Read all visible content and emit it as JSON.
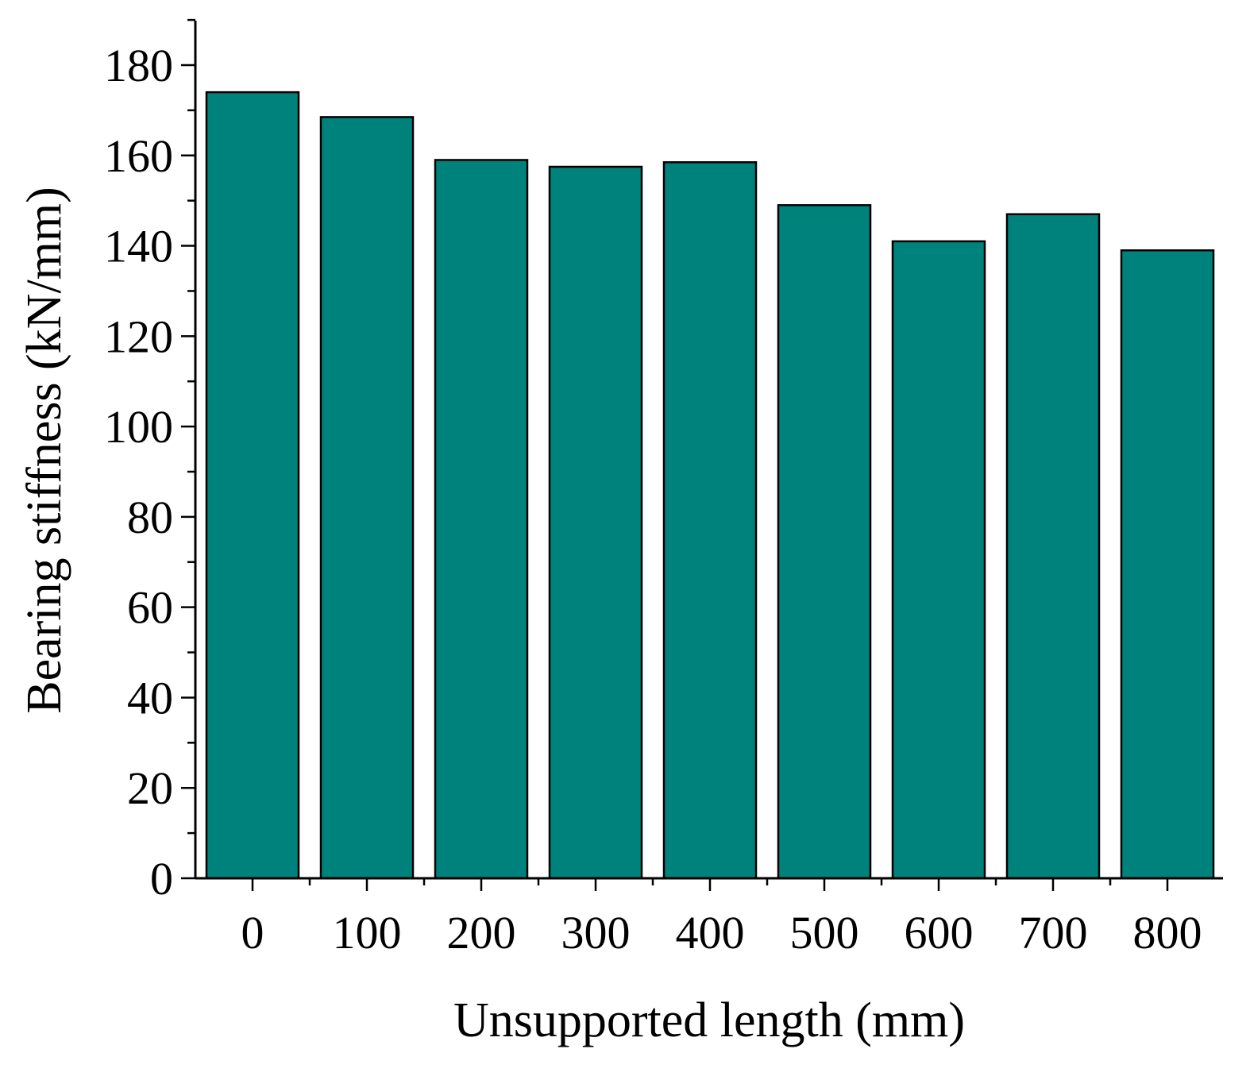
{
  "chart_data": {
    "type": "bar",
    "xlabel": "Unsupported length (mm)",
    "ylabel": "Bearing stiffness (kN/mm)",
    "categories": [
      "0",
      "100",
      "200",
      "300",
      "400",
      "500",
      "600",
      "700",
      "800"
    ],
    "values": [
      174,
      168.5,
      159,
      157.5,
      158.5,
      149,
      141,
      147,
      139
    ],
    "ylim": [
      0,
      190
    ],
    "yticks": [
      0,
      20,
      40,
      60,
      80,
      100,
      120,
      140,
      160,
      180
    ],
    "grid": false,
    "legend": "none",
    "colors": {
      "bar_fill": "#00827c",
      "bar_stroke": "#000000",
      "axis": "#000000"
    }
  }
}
